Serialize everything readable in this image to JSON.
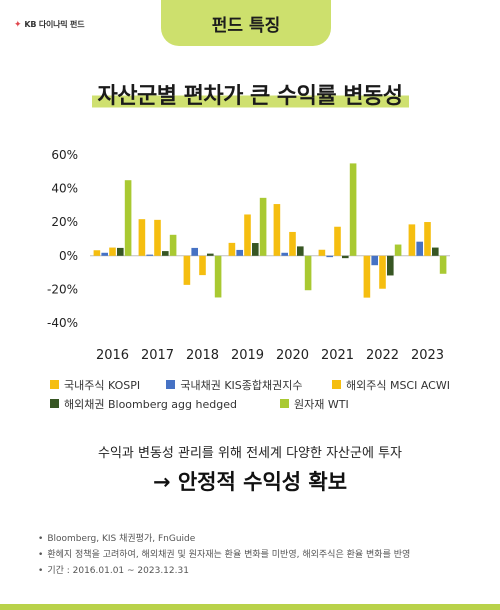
{
  "header": {
    "logo_text": "KB 다이나믹 펀드",
    "section_label": "펀드 특징"
  },
  "title": "자산군별 편차가 큰 수익률 변동성",
  "chart_data": {
    "type": "bar",
    "categories": [
      "2016",
      "2017",
      "2018",
      "2019",
      "2020",
      "2021",
      "2022",
      "2023"
    ],
    "ylim": [
      -40,
      60
    ],
    "yticks": [
      60,
      40,
      20,
      0,
      -20,
      -40
    ],
    "ytick_labels": [
      "60%",
      "40%",
      "20%",
      "0%",
      "-20%",
      "-40%"
    ],
    "grid": false,
    "legend_position": "bottom",
    "series": [
      {
        "name": "국내주식 KOSPI",
        "color": "#f5be10",
        "values": [
          3.3,
          21.8,
          -17.3,
          7.7,
          30.8,
          3.6,
          -24.9,
          18.7
        ]
      },
      {
        "name": "국내채권 KIS종합채권지수",
        "color": "#4672c4",
        "values": [
          1.8,
          0.7,
          4.7,
          3.5,
          1.8,
          -0.8,
          -5.6,
          8.4
        ]
      },
      {
        "name": "해외주식 MSCI ACWI",
        "color": "#f5be10",
        "values": [
          4.9,
          21.4,
          -11.5,
          24.6,
          14.2,
          17.3,
          -19.6,
          20.1
        ]
      },
      {
        "name": "해외채권 Bloomberg agg hedged",
        "color": "#375623",
        "values": [
          4.7,
          2.8,
          1.3,
          7.6,
          5.6,
          -1.4,
          -11.7,
          4.9
        ]
      },
      {
        "name": "원자재 WTI",
        "color": "#a9c932",
        "values": [
          45.0,
          12.5,
          -24.8,
          34.5,
          -20.5,
          55.0,
          6.7,
          -10.7
        ]
      }
    ]
  },
  "note": "수익과 변동성 관리를 위해 전세계 다양한 자산군에 투자",
  "headline": "→ 안정적 수익성 확보",
  "sources": [
    "Bloomberg, KIS 채권평가, FnGuide",
    "환헤지 정책을 고려하여, 해외채권 및 원자재는 환율 변화를 미반영, 해외주식은 환율 변화를 반영",
    "기간 : 2016.01.01 ~ 2023.12.31"
  ]
}
